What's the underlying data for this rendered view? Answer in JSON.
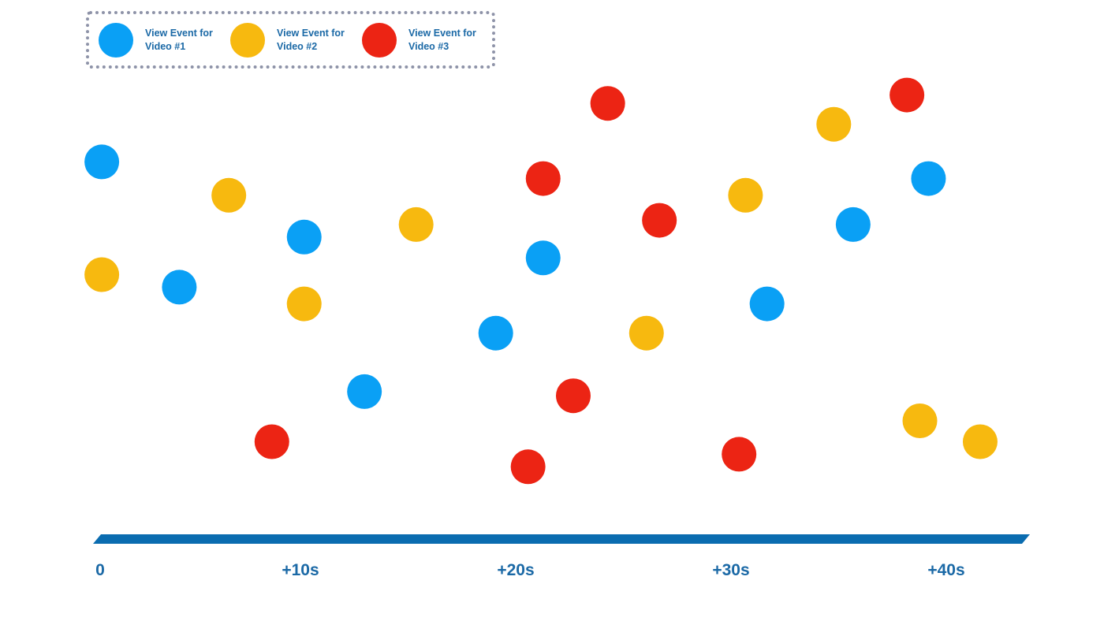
{
  "legend": {
    "items": [
      {
        "label": "View Event for Video #1",
        "color": "#0aa0f5"
      },
      {
        "label": "View Event for Video #2",
        "color": "#f7b90f"
      },
      {
        "label": "View Event for Video #3",
        "color": "#ec2414"
      }
    ]
  },
  "timeline": {
    "color": "#0a6cb0",
    "ticks": [
      "0",
      "+10s",
      "+20s",
      "+30s",
      "+40s"
    ]
  },
  "events": {
    "video1": [
      {
        "t": 0.7,
        "lane": 0.82
      },
      {
        "t": 4.3,
        "lane": 0.52
      },
      {
        "t": 10.1,
        "lane": 0.64
      },
      {
        "t": 12.9,
        "lane": 0.27
      },
      {
        "t": 19.0,
        "lane": 0.41
      },
      {
        "t": 21.2,
        "lane": 0.59
      },
      {
        "t": 31.6,
        "lane": 0.48
      },
      {
        "t": 35.6,
        "lane": 0.67
      },
      {
        "t": 39.1,
        "lane": 0.78
      }
    ],
    "video2": [
      {
        "t": 0.7,
        "lane": 0.55
      },
      {
        "t": 6.6,
        "lane": 0.74
      },
      {
        "t": 10.1,
        "lane": 0.48
      },
      {
        "t": 15.3,
        "lane": 0.67
      },
      {
        "t": 26.0,
        "lane": 0.41
      },
      {
        "t": 30.6,
        "lane": 0.74
      },
      {
        "t": 34.7,
        "lane": 0.91
      },
      {
        "t": 38.7,
        "lane": 0.2
      },
      {
        "t": 41.5,
        "lane": 0.15
      }
    ],
    "video3": [
      {
        "t": 8.6,
        "lane": 0.15
      },
      {
        "t": 20.5,
        "lane": 0.09
      },
      {
        "t": 21.2,
        "lane": 0.78
      },
      {
        "t": 22.6,
        "lane": 0.26
      },
      {
        "t": 24.2,
        "lane": 0.96
      },
      {
        "t": 26.6,
        "lane": 0.68
      },
      {
        "t": 30.3,
        "lane": 0.12
      },
      {
        "t": 38.1,
        "lane": 0.98
      }
    ]
  }
}
